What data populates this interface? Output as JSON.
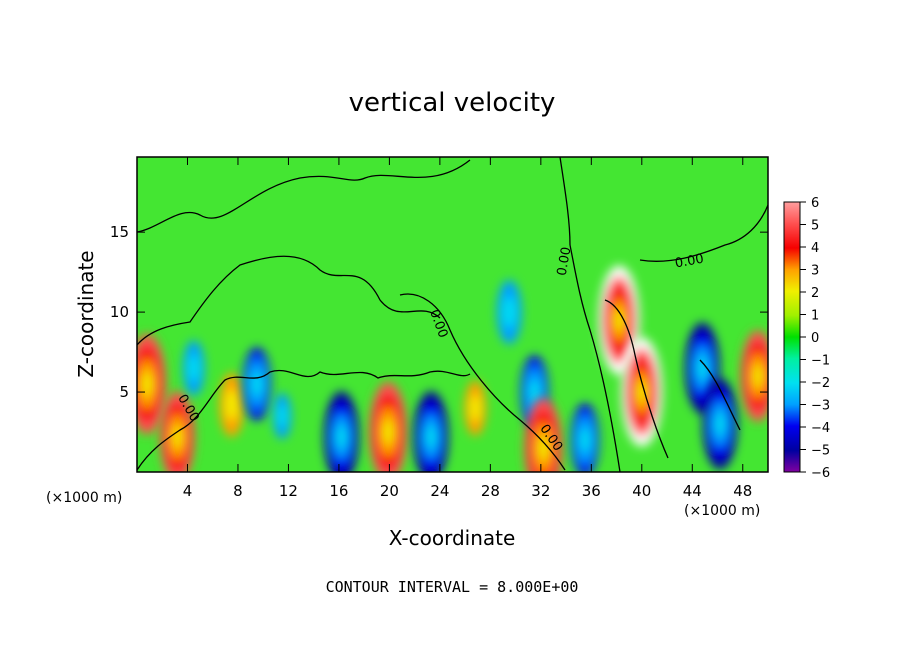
{
  "title": "vertical velocity",
  "footnote": "CONTOUR INTERVAL = 8.000E+00",
  "chart_data": {
    "type": "heatmap",
    "title": "vertical velocity",
    "xlabel": "X-coordinate",
    "ylabel": "Z-coordinate",
    "x_unit_label": "(×1000 m)",
    "xlim": [
      0,
      50
    ],
    "ylim": [
      0,
      19.7
    ],
    "x_ticks": [
      "4",
      "8",
      "12",
      "16",
      "20",
      "24",
      "28",
      "32",
      "36",
      "40",
      "44",
      "48"
    ],
    "y_ticks": [
      "5",
      "10",
      "15"
    ],
    "colorbar": {
      "range": [
        -6,
        6
      ],
      "ticks": [
        "6",
        "5",
        "4",
        "3",
        "2",
        "1",
        "0",
        "−1",
        "−2",
        "−3",
        "−4",
        "−5",
        "−6"
      ]
    },
    "contour_labels": [
      "0.00",
      "0.00",
      "0.00",
      "0.00",
      "0.00"
    ],
    "contour_interval": "8.000E+00",
    "features": [
      {
        "x": 0.8,
        "z": 5.5,
        "w": 8
      },
      {
        "x": 3.2,
        "z": 2.2,
        "w": 7
      },
      {
        "x": 4.5,
        "z": 6.5,
        "w": -3
      },
      {
        "x": 7.5,
        "z": 4.2,
        "w": 4
      },
      {
        "x": 9.5,
        "z": 5.5,
        "w": -5
      },
      {
        "x": 11.5,
        "z": 3.5,
        "w": -2
      },
      {
        "x": 16.2,
        "z": 2.2,
        "w": -7
      },
      {
        "x": 19.9,
        "z": 2.5,
        "w": 8
      },
      {
        "x": 23.3,
        "z": 2.2,
        "w": -7
      },
      {
        "x": 26.8,
        "z": 4.0,
        "w": 3
      },
      {
        "x": 29.5,
        "z": 10.0,
        "w": -4
      },
      {
        "x": 31.5,
        "z": 5.0,
        "w": -5
      },
      {
        "x": 32.2,
        "z": 1.5,
        "w": 8
      },
      {
        "x": 35.5,
        "z": 2.0,
        "w": -5
      },
      {
        "x": 38.2,
        "z": 9.5,
        "w": 9
      },
      {
        "x": 40.0,
        "z": 5.0,
        "w": 9
      },
      {
        "x": 44.8,
        "z": 6.5,
        "w": -7
      },
      {
        "x": 46.2,
        "z": 3.0,
        "w": -7
      },
      {
        "x": 49.2,
        "z": 6.0,
        "w": 7
      }
    ]
  }
}
